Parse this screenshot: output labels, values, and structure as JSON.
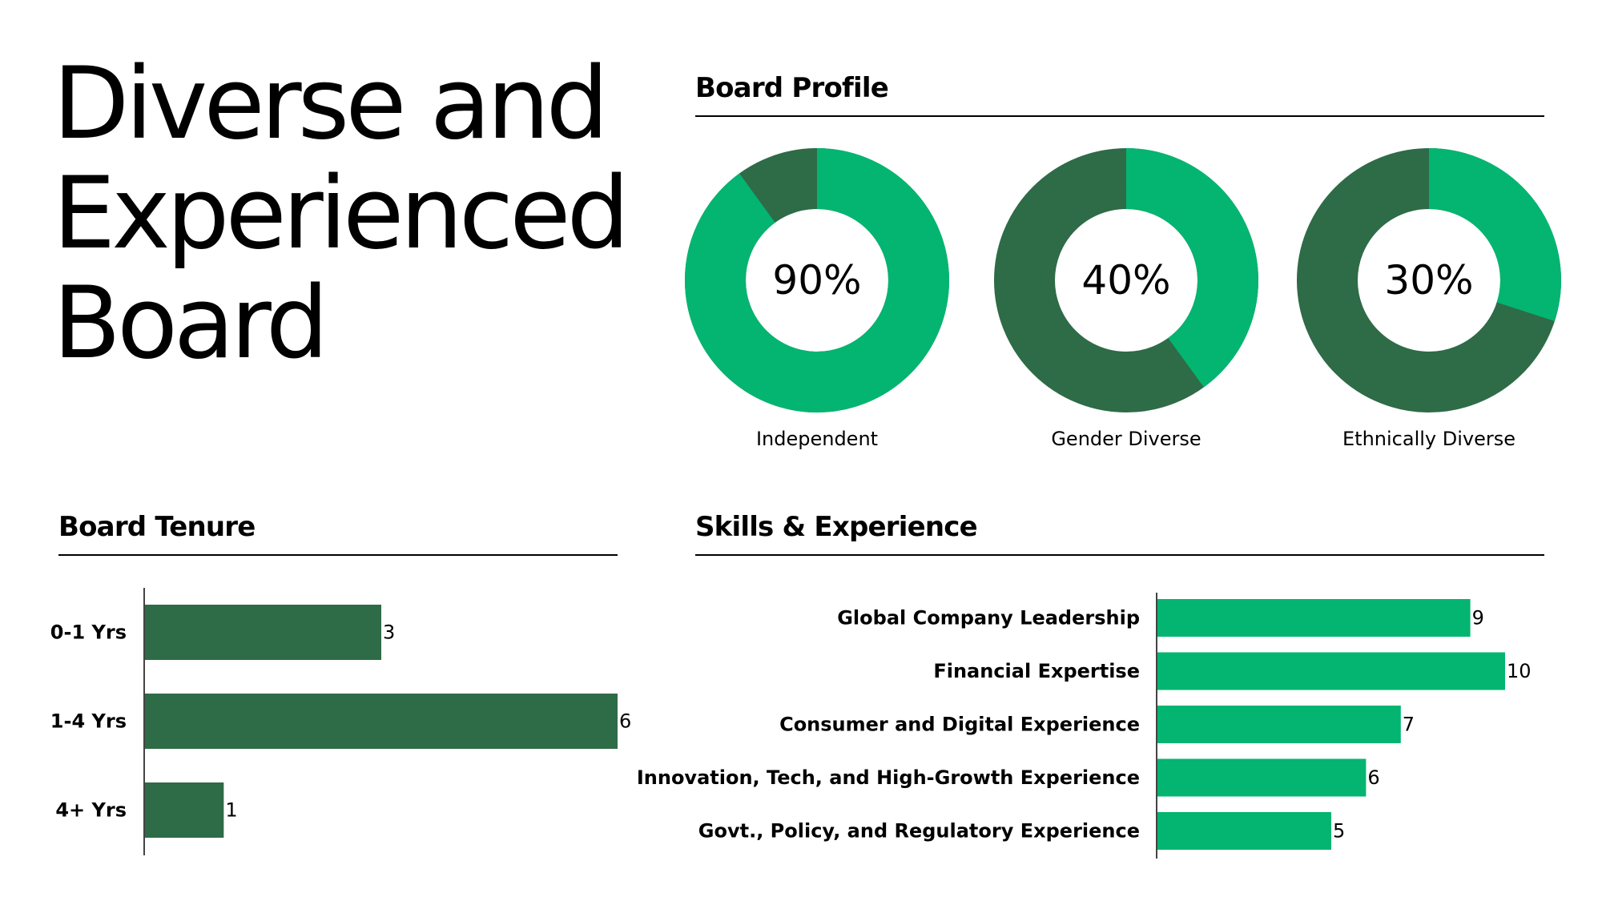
{
  "title_lines": [
    "Diverse and",
    "Experienced",
    "Board"
  ],
  "colors": {
    "light_green": "#03b571",
    "dark_green": "#2e6b47",
    "text": "#000000"
  },
  "board_profile": {
    "heading": "Board Profile",
    "chart_data": {
      "type": "pie",
      "series": [
        {
          "name": "Independent",
          "value": 90,
          "display": "90%"
        },
        {
          "name": "Gender Diverse",
          "value": 40,
          "display": "40%"
        },
        {
          "name": "Ethnically Diverse",
          "value": 30,
          "display": "30%"
        }
      ]
    }
  },
  "board_tenure": {
    "heading": "Board Tenure",
    "chart_data": {
      "type": "bar",
      "orientation": "horizontal",
      "categories": [
        "0-1 Yrs",
        "1-4 Yrs",
        "4+ Yrs"
      ],
      "values": [
        3,
        6,
        1
      ],
      "xlim": [
        0,
        6
      ],
      "grid": false
    }
  },
  "skills_experience": {
    "heading": "Skills & Experience",
    "chart_data": {
      "type": "bar",
      "orientation": "horizontal",
      "categories": [
        "Global Company Leadership",
        "Financial Expertise",
        "Consumer and Digital Experience",
        "Innovation, Tech, and High-Growth Experience",
        "Govt., Policy, and Regulatory Experience"
      ],
      "values": [
        9,
        10,
        7,
        6,
        5
      ],
      "xlim": [
        0,
        10
      ],
      "grid": false
    }
  }
}
